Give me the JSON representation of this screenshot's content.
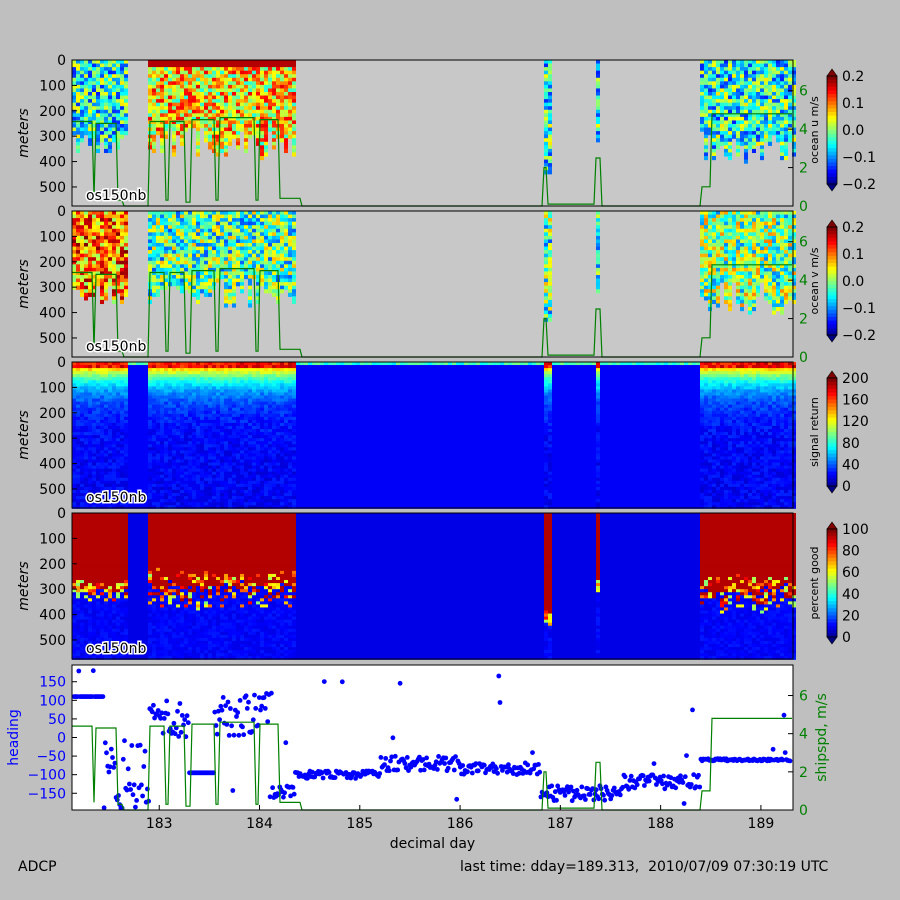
{
  "footer": {
    "left_label": "ADCP",
    "last_time": "last time: dday=189.313,  2010/07/09 07:30:19 UTC"
  },
  "colors": {
    "background": "#bfbfbf",
    "no_data": "#c8c8c8",
    "ship_speed": "#008000",
    "heading": "#0000ff"
  },
  "chart_data": [
    {
      "type": "heatmap",
      "name": "ocean-u",
      "instrument_label": "os150nb",
      "ylabel": "meters",
      "ylim": [
        0,
        575
      ],
      "y_ticks": [
        0,
        100,
        200,
        300,
        400,
        500
      ],
      "colorbar": {
        "label": "ocean u m/s",
        "range": [
          -0.2,
          0.2
        ],
        "ticks": [
          "0.2",
          "0.1",
          "0.0",
          "−0.1",
          "−0.2"
        ]
      },
      "right_axis": {
        "ticks": [
          "0",
          "2",
          "4",
          "6"
        ],
        "range": [
          0,
          7.6
        ]
      }
    },
    {
      "type": "heatmap",
      "name": "ocean-v",
      "instrument_label": "os150nb",
      "ylabel": "meters",
      "ylim": [
        0,
        575
      ],
      "y_ticks": [
        0,
        100,
        200,
        300,
        400,
        500
      ],
      "colorbar": {
        "label": "ocean v m/s",
        "range": [
          -0.2,
          0.2
        ],
        "ticks": [
          "0.2",
          "0.1",
          "0.0",
          "−0.1",
          "−0.2"
        ]
      },
      "right_axis": {
        "ticks": [
          "0",
          "2",
          "4",
          "6"
        ],
        "range": [
          0,
          7.6
        ]
      }
    },
    {
      "type": "heatmap",
      "name": "signal-return",
      "instrument_label": "os150nb",
      "ylabel": "meters",
      "ylim": [
        0,
        575
      ],
      "y_ticks": [
        0,
        100,
        200,
        300,
        400,
        500
      ],
      "colorbar": {
        "label": "signal return",
        "range": [
          0,
          200
        ],
        "ticks": [
          "200",
          "160",
          "120",
          "80",
          "40",
          "0"
        ]
      }
    },
    {
      "type": "heatmap",
      "name": "percent-good",
      "instrument_label": "os150nb",
      "ylabel": "meters",
      "ylim": [
        0,
        575
      ],
      "y_ticks": [
        0,
        100,
        200,
        300,
        400,
        500
      ],
      "colorbar": {
        "label": "percent good",
        "range": [
          0,
          100
        ],
        "ticks": [
          "100",
          "80",
          "60",
          "40",
          "20",
          "0"
        ]
      }
    },
    {
      "type": "scatter",
      "name": "heading-shipspd",
      "xlabel": "decimal day",
      "xlim": [
        182.13,
        189.32
      ],
      "x_ticks": [
        "183",
        "184",
        "185",
        "186",
        "187",
        "188",
        "189"
      ],
      "ylabel": "heading",
      "ylim": [
        -195,
        195
      ],
      "y_ticks": [
        "150",
        "100",
        "50",
        "0",
        "−50",
        "−100",
        "−150"
      ],
      "right_axis": {
        "label": "shipspd, m/s",
        "ticks": [
          "0",
          "2",
          "4",
          "6"
        ],
        "range": [
          0,
          7.6
        ]
      }
    }
  ]
}
